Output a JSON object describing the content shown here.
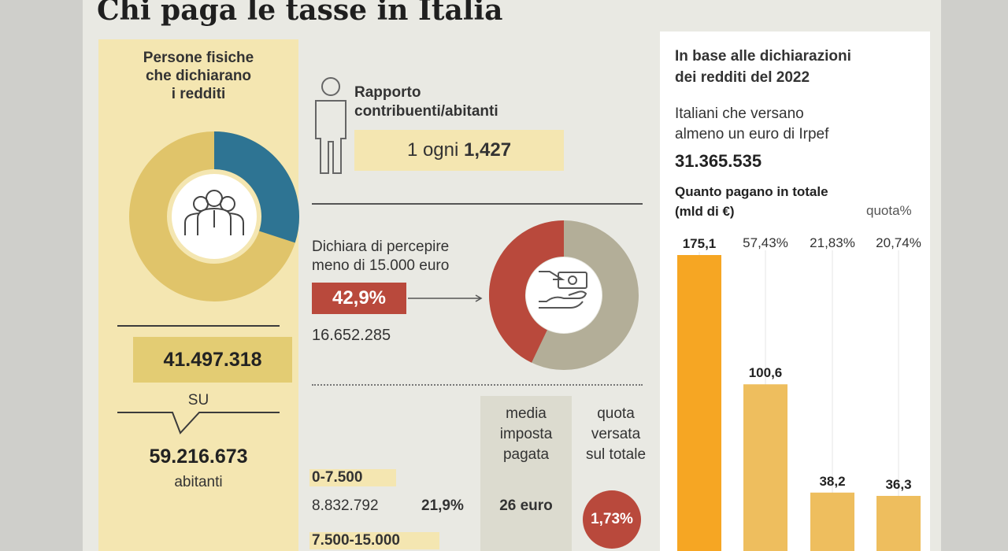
{
  "title": "Chi paga le tasse in Italia",
  "persone": {
    "heading": [
      "Persone fisiche",
      "che dichiarano",
      "i redditi"
    ],
    "dichiaranti": "41.497.318",
    "su": "SU",
    "abitanti": "59.216.673",
    "abitanti_label": "abitanti",
    "donut_share": 0.7
  },
  "rapporto": {
    "label": [
      "Rapporto",
      "contribuenti/abitanti"
    ],
    "prefix": "1 ogni",
    "value": "1,427"
  },
  "meno15000": {
    "label": [
      "Dichiara di percepire",
      "meno di 15.000 euro"
    ],
    "pct": "42,9%",
    "count": "16.652.285",
    "share": 0.429
  },
  "tabella": {
    "col_media": [
      "media",
      "imposta",
      "pagata"
    ],
    "col_quota": [
      "quota",
      "versata",
      "sul totale"
    ],
    "rows": [
      {
        "range": "0-7.500",
        "count": "8.832.792",
        "pct": "21,9%",
        "media": "26 euro",
        "quota": "1,73%"
      },
      {
        "range": "7.500-15.000"
      }
    ]
  },
  "dichiarazioni": {
    "heading": [
      "In base alle dichiarazioni",
      "dei redditi del 2022"
    ],
    "italiani": [
      "Italiani che versano",
      "almeno un euro di Irpef"
    ],
    "italiani_value": "31.365.535",
    "quanto": [
      "Quanto pagano in totale",
      "(mld di €)"
    ],
    "quota_label": "quota%"
  },
  "colors": {
    "gold": "#e0c46a",
    "blue": "#2e7493",
    "red": "#b9493c",
    "grey": "#b3ae98",
    "orange_bar": "#f6a623",
    "bar": "#eebe5e"
  },
  "chart_data": {
    "type": "bar",
    "categories": [
      "",
      "",
      "",
      ""
    ],
    "values": [
      175.1,
      100.6,
      38.2,
      36.3
    ],
    "value_labels": [
      "175,1",
      "100,6",
      "38,2",
      "36,3"
    ],
    "quota": [
      "",
      "57,43%",
      "21,83%",
      "20,74%"
    ],
    "title": "Quanto pagano in totale",
    "ylabel": "mld di €",
    "ylim": [
      0,
      175.1
    ]
  }
}
